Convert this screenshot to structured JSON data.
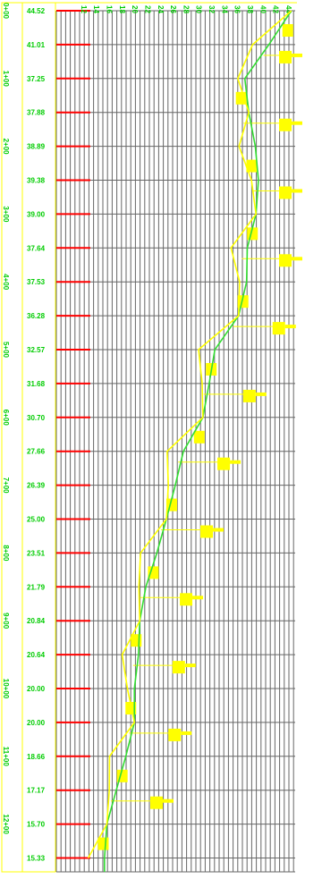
{
  "colors": {
    "grid": "#666666",
    "label_text": "#00cc00",
    "tick_red": "#ff0000",
    "design_line": "#ffff00",
    "ground_line": "#33dd33",
    "frame": "#ffff00"
  },
  "profile": {
    "elevation_ticks": [
      "12",
      "14",
      "16",
      "18",
      "20",
      "22",
      "24",
      "26",
      "28",
      "30",
      "32",
      "34",
      "36",
      "38",
      "40",
      "42",
      "44"
    ],
    "stations": [
      {
        "label": "0+00",
        "value": "44.52"
      },
      {
        "label": "",
        "value": "41.01"
      },
      {
        "label": "1+00",
        "value": "37.25"
      },
      {
        "label": "",
        "value": "37.88"
      },
      {
        "label": "2+00",
        "value": "38.89"
      },
      {
        "label": "",
        "value": "39.38"
      },
      {
        "label": "3+00",
        "value": "39.00"
      },
      {
        "label": "",
        "value": "37.64"
      },
      {
        "label": "4+00",
        "value": "37.53"
      },
      {
        "label": "",
        "value": "36.28"
      },
      {
        "label": "5+00",
        "value": "32.57"
      },
      {
        "label": "",
        "value": "31.68"
      },
      {
        "label": "6+00",
        "value": "30.70"
      },
      {
        "label": "",
        "value": "27.66"
      },
      {
        "label": "7+00",
        "value": "26.39"
      },
      {
        "label": "",
        "value": "25.00"
      },
      {
        "label": "8+00",
        "value": "23.51"
      },
      {
        "label": "",
        "value": "21.79"
      },
      {
        "label": "9+00",
        "value": "20.84"
      },
      {
        "label": "",
        "value": "20.64"
      },
      {
        "label": "10+00",
        "value": "20.00"
      },
      {
        "label": "",
        "value": "20.00"
      },
      {
        "label": "11+00",
        "value": "18.66"
      },
      {
        "label": "",
        "value": "17.17"
      },
      {
        "label": "12+00",
        "value": "15.70"
      },
      {
        "label": "",
        "value": "15.33"
      }
    ]
  }
}
